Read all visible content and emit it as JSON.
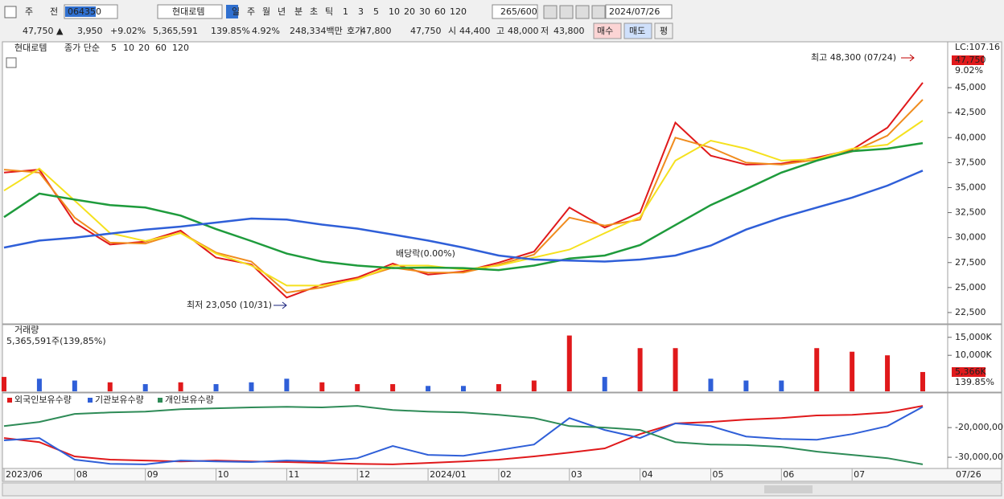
{
  "toolbar": {
    "items": [
      {
        "text": "주",
        "color": "#222"
      },
      {
        "text": "전",
        "color": "#222"
      },
      {
        "text": "064350",
        "color": "#ffffff"
      },
      {
        "text": "현대로템",
        "color": "#222"
      },
      {
        "text": "일",
        "color": "#ffffff"
      },
      {
        "text": "주",
        "color": "#222"
      },
      {
        "text": "월",
        "color": "#222"
      },
      {
        "text": "년",
        "color": "#222"
      },
      {
        "text": "분",
        "color": "#222"
      },
      {
        "text": "초",
        "color": "#222"
      },
      {
        "text": "틱",
        "color": "#222"
      },
      {
        "text": "1",
        "color": "#666"
      },
      {
        "text": "3",
        "color": "#666"
      },
      {
        "text": "5",
        "color": "#666"
      },
      {
        "text": "10",
        "color": "#666"
      },
      {
        "text": "20",
        "color": "#666"
      },
      {
        "text": "30",
        "color": "#666"
      },
      {
        "text": "60",
        "color": "#666"
      },
      {
        "text": "120",
        "color": "#666"
      },
      {
        "text": "265/600",
        "color": "#222"
      },
      {
        "text": "2024/07/26",
        "color": "#222"
      }
    ]
  },
  "quote": {
    "items": [
      {
        "text": "47,750 ▲",
        "color": "#e0191b"
      },
      {
        "text": "3,950",
        "color": "#e0191b"
      },
      {
        "text": "+9.02%",
        "color": "#e0191b"
      },
      {
        "text": "5,365,591",
        "color": "#222"
      },
      {
        "text": "139.85%",
        "color": "#e0191b"
      },
      {
        "text": "4.92%",
        "color": "#222"
      },
      {
        "text": "248,334백만",
        "color": "#222"
      },
      {
        "text": "호가",
        "color": "#222"
      },
      {
        "text": "47,800",
        "color": "#e0191b"
      },
      {
        "text": "47,750",
        "color": "#e0191b"
      },
      {
        "text": "시",
        "color": "#222"
      },
      {
        "text": "44,400",
        "color": "#e0191b"
      },
      {
        "text": "고",
        "color": "#222"
      },
      {
        "text": "48,000",
        "color": "#e0191b"
      },
      {
        "text": "저",
        "color": "#222"
      },
      {
        "text": "43,800",
        "color": "#222"
      },
      {
        "text": "매수",
        "color": "#222"
      },
      {
        "text": "매도",
        "color": "#222"
      },
      {
        "text": "평",
        "color": "#222"
      }
    ]
  },
  "chart_data": [
    {
      "type": "line",
      "title": "현대로템",
      "subtitle": "종가 단순",
      "categories": [
        "2023/06",
        null,
        "08",
        null,
        "09",
        null,
        "10",
        null,
        "11",
        null,
        "12",
        null,
        "2024/01",
        null,
        "02",
        null,
        "03",
        null,
        "04",
        null,
        "05",
        null,
        "06",
        null,
        "07",
        null,
        null
      ],
      "end_label": "07/26",
      "series": [
        {
          "name": "5",
          "color": "#e0191b",
          "values": [
            36500,
            36800,
            31500,
            29300,
            29600,
            30700,
            28000,
            27300,
            24000,
            25300,
            26000,
            27400,
            26300,
            26600,
            27500,
            28600,
            33000,
            31000,
            32500,
            41500,
            38200,
            37300,
            37400,
            38000,
            38800,
            41000,
            45500
          ]
        },
        {
          "name": "10",
          "color": "#f08c1e",
          "values": [
            36800,
            36500,
            32000,
            29500,
            29400,
            30500,
            28500,
            27600,
            24500,
            25000,
            25900,
            27000,
            26500,
            26500,
            27300,
            28300,
            32000,
            31200,
            31800,
            40000,
            39000,
            37500,
            37300,
            37800,
            38600,
            40200,
            43800
          ]
        },
        {
          "name": "20",
          "color": "#f5e11e",
          "values": [
            34700,
            36900,
            33700,
            30450,
            29650,
            30450,
            28400,
            27200,
            25200,
            25200,
            25800,
            27200,
            27200,
            26800,
            27200,
            28000,
            28800,
            30450,
            32050,
            37700,
            39700,
            38900,
            37700,
            37850,
            38900,
            39300,
            41700
          ]
        },
        {
          "name": "60",
          "color": "#1e9b3c",
          "values": [
            32050,
            34400,
            33800,
            33250,
            33000,
            32200,
            30850,
            29650,
            28400,
            27600,
            27200,
            26950,
            27000,
            26950,
            26750,
            27200,
            27900,
            28200,
            29250,
            31250,
            33250,
            34850,
            36500,
            37700,
            38650,
            38900,
            39450
          ]
        },
        {
          "name": "120",
          "color": "#2f5fd8",
          "values": [
            29000,
            29700,
            30000,
            30400,
            30800,
            31100,
            31500,
            31900,
            31800,
            31300,
            30900,
            30300,
            29700,
            29000,
            28200,
            27800,
            27700,
            27600,
            27800,
            28200,
            29200,
            30800,
            32000,
            33000,
            34000,
            35200,
            36700
          ]
        }
      ],
      "ylim": [
        21450,
        49350
      ],
      "yticks": [
        {
          "value": 22500,
          "label": "22,500"
        },
        {
          "value": 25000,
          "label": "25,000"
        },
        {
          "value": 27500,
          "label": "27,500"
        },
        {
          "value": 30000,
          "label": "30,000"
        },
        {
          "value": 32500,
          "label": "32,500"
        },
        {
          "value": 35000,
          "label": "35,000"
        },
        {
          "value": 37500,
          "label": "37,500"
        },
        {
          "value": 40000,
          "label": "40,000"
        },
        {
          "value": 42500,
          "label": "42,500"
        },
        {
          "value": 45000,
          "label": "45,000"
        }
      ],
      "right_labels": [
        {
          "text": "LC:107.16",
          "color": "#e0191b"
        },
        {
          "text": "47,750",
          "color": "#ffffff"
        },
        {
          "text": "9.02%",
          "color": "#e0191b"
        }
      ],
      "annotations": [
        {
          "text": "최고 48,300 (07/24)",
          "color": "#c00000"
        },
        {
          "text": "최저 23,050 (10/31)",
          "color": "#1a237e"
        },
        {
          "text": "배당락(0.00%)",
          "color": "#555555"
        }
      ],
      "grid": false
    },
    {
      "type": "bar",
      "title": "거래량",
      "subtitle": "5,365,591주(139,85%)",
      "values": [
        4000000,
        3500000,
        3000000,
        2500000,
        2000000,
        2500000,
        2000000,
        2500000,
        3500000,
        2500000,
        2000000,
        2000000,
        1500000,
        1500000,
        2000000,
        3000000,
        15500000,
        4000000,
        12000000,
        12000000,
        3500000,
        3000000,
        3000000,
        12000000,
        11000000,
        10000000,
        5365591
      ],
      "colors": [
        "#e0191b",
        "#2f5fd8",
        "#2f5fd8",
        "#e0191b",
        "#2f5fd8",
        "#e0191b",
        "#2f5fd8",
        "#2f5fd8",
        "#2f5fd8",
        "#e0191b",
        "#e0191b",
        "#e0191b",
        "#2f5fd8",
        "#2f5fd8",
        "#e0191b",
        "#e0191b",
        "#e0191b",
        "#2f5fd8",
        "#e0191b",
        "#e0191b",
        "#2f5fd8",
        "#2f5fd8",
        "#2f5fd8",
        "#e0191b",
        "#e0191b",
        "#e0191b",
        "#e0191b"
      ],
      "ylim": [
        0,
        18300000
      ],
      "yticks": [
        {
          "value": 10000000,
          "label": "10,000K"
        },
        {
          "value": 15000000,
          "label": "15,000K"
        }
      ],
      "right_labels": [
        {
          "text": "5,366K",
          "color": "#ffffff"
        },
        {
          "text": "139.85%",
          "color": "#e0191b"
        }
      ]
    },
    {
      "type": "line",
      "series": [
        {
          "name": "외국인보유수량",
          "color": "#e0191b",
          "values": [
            -23500000,
            -24900000,
            -29700000,
            -30800000,
            -31100000,
            -31400000,
            -31100000,
            -31400000,
            -31600000,
            -31900000,
            -32200000,
            -32400000,
            -31900000,
            -31400000,
            -30800000,
            -29700000,
            -28400000,
            -27000000,
            -22200000,
            -18600000,
            -18100000,
            -17300000,
            -16800000,
            -15900000,
            -15700000,
            -14900000,
            -12700000
          ]
        },
        {
          "name": "기관보유수량",
          "color": "#2f5fd8",
          "values": [
            -24300000,
            -23500000,
            -30800000,
            -32200000,
            -32400000,
            -31100000,
            -31400000,
            -31600000,
            -31100000,
            -31400000,
            -30300000,
            -26200000,
            -29200000,
            -29500000,
            -27600000,
            -25700000,
            -16800000,
            -20800000,
            -23500000,
            -18600000,
            -19500000,
            -23000000,
            -23800000,
            -24100000,
            -22200000,
            -19500000,
            -13000000
          ]
        },
        {
          "name": "개인보유수량",
          "color": "#2e8b57",
          "values": [
            -19500000,
            -18100000,
            -15400000,
            -14900000,
            -14600000,
            -13800000,
            -13500000,
            -13200000,
            -13000000,
            -13200000,
            -12700000,
            -14100000,
            -14600000,
            -14900000,
            -15700000,
            -16800000,
            -19500000,
            -20000000,
            -20800000,
            -24900000,
            -25700000,
            -25900000,
            -26500000,
            -28100000,
            -29200000,
            -30300000,
            -32400000
          ]
        }
      ],
      "ylim": [
        -33500000,
        -8600000
      ],
      "yticks": [
        {
          "value": -20000000,
          "label": "-20,000,00"
        },
        {
          "value": -30000000,
          "label": "-30,000,00"
        }
      ]
    }
  ]
}
